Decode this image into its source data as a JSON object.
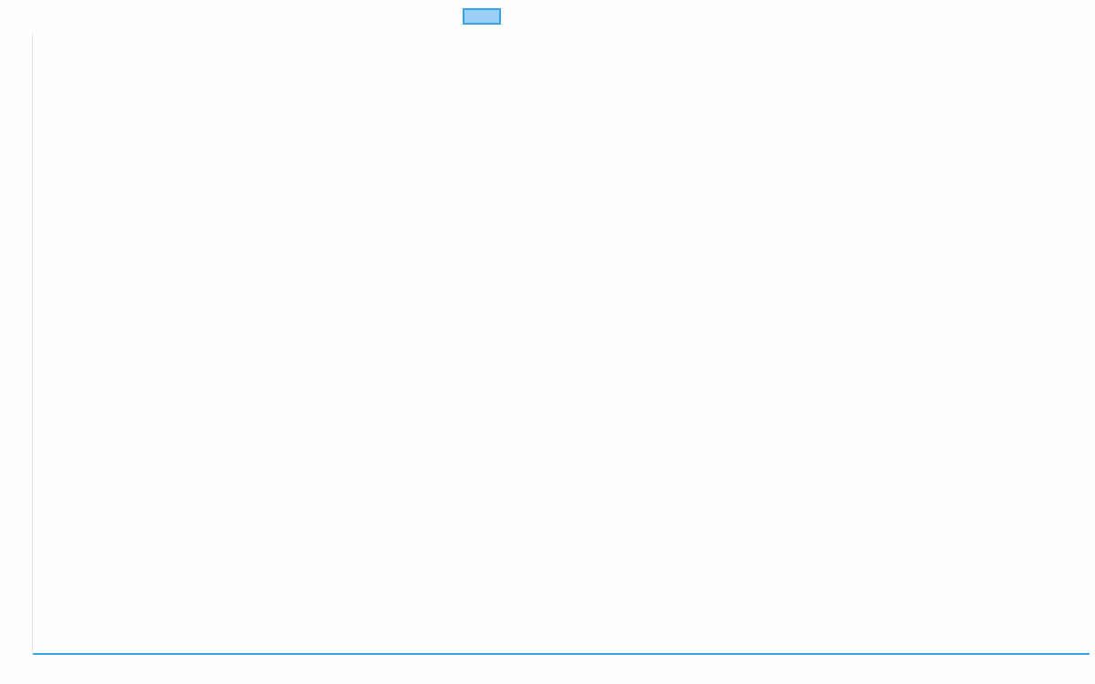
{
  "chart_data": {
    "type": "line",
    "title": "",
    "xlabel": "",
    "ylabel": "",
    "categories": [
      "",
      ""
    ],
    "series": [
      {
        "values": [
          0,
          0
        ],
        "color": "#36a2eb",
        "fill": "#9ad0f5"
      }
    ],
    "ylim": [
      0,
      1
    ],
    "grid": false,
    "legend": "top"
  }
}
